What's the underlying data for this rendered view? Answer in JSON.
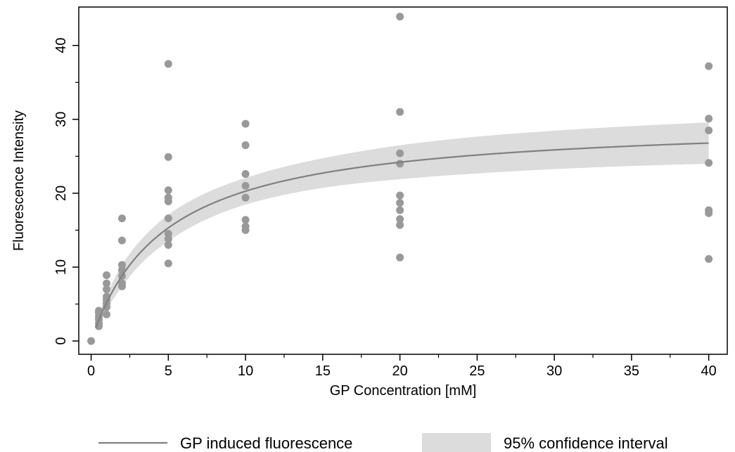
{
  "chart_data": {
    "type": "scatter",
    "xlabel": "GP Concentration [mM]",
    "ylabel": "Fluorescence Intensity",
    "xlim": [
      -0.8,
      41.2
    ],
    "ylim": [
      -1.8,
      45.2
    ],
    "x_ticks": [
      0,
      5,
      10,
      15,
      20,
      25,
      30,
      35,
      40
    ],
    "x_minor_ticks": [
      2.5,
      7.5,
      12.5,
      17.5,
      22.5,
      27.5,
      32.5,
      37.5
    ],
    "y_ticks": [
      0,
      10,
      20,
      30,
      40
    ],
    "y_minor_ticks": [
      5,
      15,
      25,
      35
    ],
    "grid": false,
    "legend_position": "bottom",
    "colors": {
      "points": "#999999",
      "fit_line": "#808080",
      "ci_band": "#dcdcdc",
      "axes": "#000000"
    },
    "fit": {
      "name": "GP induced fluorescence",
      "model": "Michaelis-Menten",
      "vmax": 30.0,
      "km": 4.8,
      "x_start": 0.3,
      "x_end": 40,
      "ci_name": "95% confidence interval",
      "ci_half_width": [
        [
          0.3,
          0.3
        ],
        [
          0.5,
          0.6
        ],
        [
          1,
          1.0
        ],
        [
          2,
          1.5
        ],
        [
          5,
          1.8
        ],
        [
          10,
          1.8
        ],
        [
          15,
          2.0
        ],
        [
          20,
          2.3
        ],
        [
          25,
          2.5
        ],
        [
          30,
          2.6
        ],
        [
          35,
          2.7
        ],
        [
          40,
          2.8
        ]
      ]
    },
    "points": [
      {
        "x": 0,
        "y": 0
      },
      {
        "x": 0.5,
        "y": 2.0
      },
      {
        "x": 0.5,
        "y": 2.4
      },
      {
        "x": 0.5,
        "y": 2.9
      },
      {
        "x": 0.5,
        "y": 3.3
      },
      {
        "x": 0.5,
        "y": 3.8
      },
      {
        "x": 0.5,
        "y": 4.1
      },
      {
        "x": 1,
        "y": 3.6
      },
      {
        "x": 1,
        "y": 4.6
      },
      {
        "x": 1,
        "y": 5.1
      },
      {
        "x": 1,
        "y": 5.6
      },
      {
        "x": 1,
        "y": 6.0
      },
      {
        "x": 1,
        "y": 7.0
      },
      {
        "x": 1,
        "y": 7.8
      },
      {
        "x": 1,
        "y": 8.9
      },
      {
        "x": 2,
        "y": 7.4
      },
      {
        "x": 2,
        "y": 7.8
      },
      {
        "x": 2,
        "y": 8.8
      },
      {
        "x": 2,
        "y": 9.6
      },
      {
        "x": 2,
        "y": 10.3
      },
      {
        "x": 2,
        "y": 13.6
      },
      {
        "x": 2,
        "y": 16.6
      },
      {
        "x": 5,
        "y": 10.5
      },
      {
        "x": 5,
        "y": 13.0
      },
      {
        "x": 5,
        "y": 13.8
      },
      {
        "x": 5,
        "y": 14.5
      },
      {
        "x": 5,
        "y": 16.6
      },
      {
        "x": 5,
        "y": 18.9
      },
      {
        "x": 5,
        "y": 19.4
      },
      {
        "x": 5,
        "y": 20.4
      },
      {
        "x": 5,
        "y": 24.9
      },
      {
        "x": 5,
        "y": 37.5
      },
      {
        "x": 10,
        "y": 15.0
      },
      {
        "x": 10,
        "y": 15.5
      },
      {
        "x": 10,
        "y": 16.4
      },
      {
        "x": 10,
        "y": 19.4
      },
      {
        "x": 10,
        "y": 21.0
      },
      {
        "x": 10,
        "y": 22.6
      },
      {
        "x": 10,
        "y": 26.5
      },
      {
        "x": 10,
        "y": 29.4
      },
      {
        "x": 20,
        "y": 11.3
      },
      {
        "x": 20,
        "y": 15.7
      },
      {
        "x": 20,
        "y": 16.5
      },
      {
        "x": 20,
        "y": 17.7
      },
      {
        "x": 20,
        "y": 18.7
      },
      {
        "x": 20,
        "y": 19.7
      },
      {
        "x": 20,
        "y": 24.0
      },
      {
        "x": 20,
        "y": 25.4
      },
      {
        "x": 20,
        "y": 31.0
      },
      {
        "x": 20,
        "y": 43.9
      },
      {
        "x": 40,
        "y": 11.1
      },
      {
        "x": 40,
        "y": 17.3
      },
      {
        "x": 40,
        "y": 17.7
      },
      {
        "x": 40,
        "y": 24.1
      },
      {
        "x": 40,
        "y": 28.5
      },
      {
        "x": 40,
        "y": 30.1
      },
      {
        "x": 40,
        "y": 37.2
      }
    ]
  }
}
